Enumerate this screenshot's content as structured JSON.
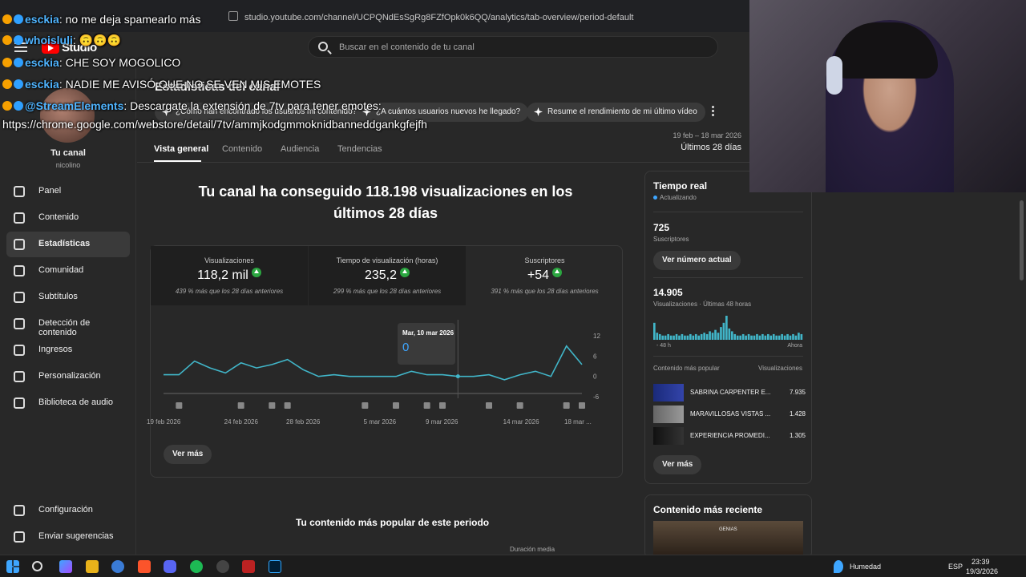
{
  "browser": {
    "url": "studio.youtube.com/channel/UCPQNdEsSgRg8FZfOpk0k6QQ/analytics/tab-overview/period-default"
  },
  "header": {
    "studio_label": "Studio",
    "search_placeholder": "Buscar en el contenido de tu canal"
  },
  "sidebar": {
    "channel_name": "Tu canal",
    "channel_handle": "nicolino",
    "items": [
      {
        "label": "Panel",
        "icon": "dashboard-icon"
      },
      {
        "label": "Contenido",
        "icon": "content-icon"
      },
      {
        "label": "Estadísticas",
        "icon": "analytics-icon",
        "active": true
      },
      {
        "label": "Comunidad",
        "icon": "community-icon"
      },
      {
        "label": "Subtítulos",
        "icon": "subtitles-icon"
      },
      {
        "label": "Detección de contenido",
        "icon": "copyright-icon"
      },
      {
        "label": "Ingresos",
        "icon": "dollar-icon"
      },
      {
        "label": "Personalización",
        "icon": "wand-icon"
      },
      {
        "label": "Biblioteca de audio",
        "icon": "audio-library-icon"
      }
    ],
    "bottom_items": [
      {
        "label": "Configuración",
        "icon": "gear-icon"
      },
      {
        "label": "Enviar sugerencias",
        "icon": "feedback-icon"
      }
    ]
  },
  "main": {
    "page_title": "Estadísticas del canal",
    "chips": [
      "¿Cómo han encontrado los usuarios mi contenido?",
      "¿A cuántos usuarios nuevos he llegado?",
      "Resume el rendimiento de mi último vídeo"
    ],
    "tabs": [
      "Vista general",
      "Contenido",
      "Audiencia",
      "Tendencias"
    ],
    "date_range": "19 feb – 18 mar 2026",
    "date_label": "Últimos 28 días",
    "headline": "Tu canal ha conseguido 118.198 visualizaciones en los últimos 28 días",
    "metrics": [
      {
        "label": "Visualizaciones",
        "value": "118,2 mil",
        "sub": "439 % más que los 28 días anteriores"
      },
      {
        "label": "Tiempo de visualización (horas)",
        "value": "235,2",
        "sub": "299 % más que los 28 días anteriores"
      },
      {
        "label": "Suscriptores",
        "value": "+54",
        "sub": "391 % más que los 28 días anteriores"
      }
    ],
    "tooltip": {
      "date": "Mar, 10 mar 2026",
      "value": "0"
    },
    "see_more": "Ver más",
    "section_title": "Tu contenido más popular de este periodo",
    "section_sub": "Duración media"
  },
  "chart_data": {
    "type": "line",
    "x": [
      "19 feb",
      "20 feb",
      "21 feb",
      "22 feb",
      "23 feb",
      "24 feb",
      "25 feb",
      "26 feb",
      "27 feb",
      "28 feb",
      "1 mar",
      "2 mar",
      "3 mar",
      "4 mar",
      "5 mar",
      "6 mar",
      "7 mar",
      "8 mar",
      "9 mar",
      "10 mar",
      "11 mar",
      "12 mar",
      "13 mar",
      "14 mar",
      "15 mar",
      "16 mar",
      "17 mar",
      "18 mar"
    ],
    "values": [
      0.5,
      0.5,
      4.5,
      2.5,
      1,
      4,
      2.5,
      3.5,
      5,
      2,
      0,
      0.5,
      0,
      0,
      0,
      0,
      1.5,
      0.5,
      0.5,
      0,
      0,
      0.5,
      -1,
      0.5,
      1.5,
      0,
      9,
      3.5
    ],
    "x_tick_labels": [
      "19 feb 2026",
      "24 feb 2026",
      "28 feb 2026",
      "5 mar 2026",
      "9 mar 2026",
      "14 mar 2026",
      "18 mar ..."
    ],
    "y_ticks": [
      12,
      6,
      0,
      -6
    ],
    "ylim": [
      -6,
      12
    ],
    "highlight_index": 19
  },
  "realtime": {
    "title": "Tiempo real",
    "status": "Actualizando",
    "subscribers_value": "725",
    "subscribers_label": "Suscriptores",
    "button_current": "Ver número actual",
    "views_value": "14.905",
    "views_label": "Visualizaciones · Últimas 48 horas",
    "axis_left": "- 48 h",
    "axis_right": "Ahora",
    "bars": [
      12,
      5,
      4,
      3,
      3,
      4,
      3,
      3,
      4,
      3,
      4,
      3,
      3,
      4,
      3,
      4,
      3,
      4,
      5,
      4,
      6,
      5,
      7,
      5,
      9,
      12,
      17,
      8,
      6,
      4,
      3,
      3,
      4,
      3,
      4,
      3,
      3,
      4,
      3,
      4,
      3,
      4,
      3,
      4,
      3,
      3,
      4,
      3,
      4,
      3,
      4,
      3,
      5,
      4
    ],
    "popular_label": "Contenido más popular",
    "popular_col": "Visualizaciones",
    "popular": [
      {
        "title": "SABRINA CARPENTER E...",
        "views": "7.935"
      },
      {
        "title": "MARAVILLOSAS VISTAS ...",
        "views": "1.428"
      },
      {
        "title": "EXPERIENCIA PROMEDI...",
        "views": "1.305"
      }
    ],
    "see_more": "Ver más"
  },
  "recent": {
    "title": "Contenido más reciente",
    "thumb_label": "GENIAS"
  },
  "chat": [
    {
      "user": "esckia",
      "text": ": no me deja spamearlo más",
      "color": "#4fb4ff"
    },
    {
      "user": "whoisluli",
      "text": ": 🙃🙃🙃",
      "color": "#4fb4ff"
    },
    {
      "user": "esckia",
      "text": ": CHE SOY MOGOLICO",
      "color": "#4fb4ff"
    },
    {
      "user": "esckia",
      "text": ": NADIE ME AVISÓ QUE NO SE VEN MIS EMOTES",
      "color": "#4fb4ff"
    },
    {
      "user": "@StreamElements",
      "text": ": Descargate la extensión de 7tv para tener emotes:",
      "color": "#4fb4ff"
    },
    {
      "user": "",
      "text": "https://chrome.google.com/webstore/detail/7tv/ammjkodgmmoknidbanneddgankgfejfh",
      "color": "#ffffff"
    }
  ],
  "taskbar": {
    "weather": "Humedad",
    "lang": "ESP",
    "time": "23:39",
    "date": "19/3/2026"
  }
}
